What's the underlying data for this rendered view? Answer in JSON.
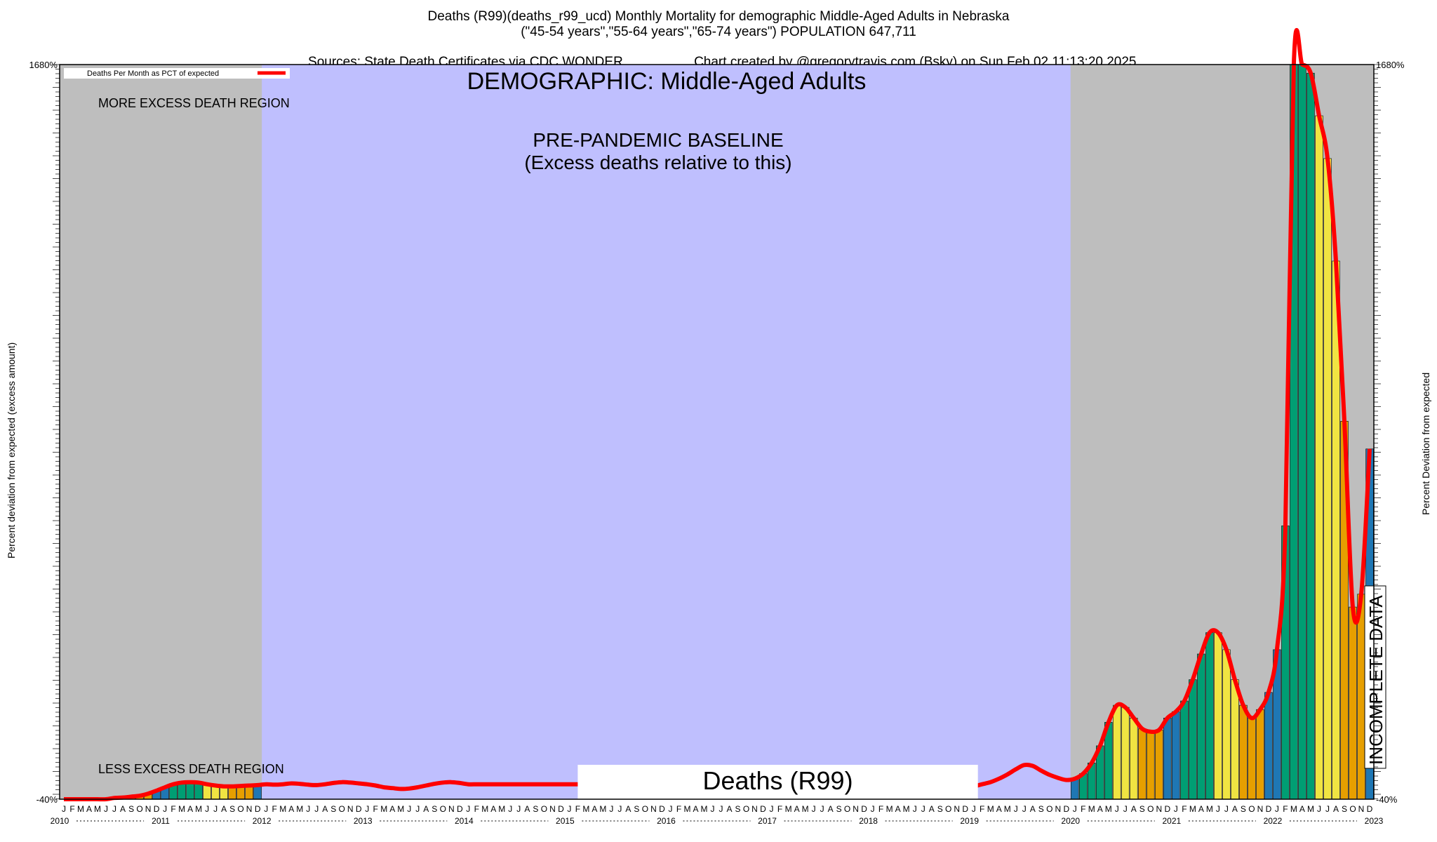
{
  "header": {
    "line1": "Deaths (R99)(deaths_r99_ucd) Monthly Mortality for demographic Middle-Aged Adults in Nebraska",
    "line2": "(\"45-54 years\",\"55-64 years\",\"65-74 years\") POPULATION 647,711",
    "line3_left": "Sources: State Death Certificates via CDC WONDER.",
    "line3_right": "Chart created by @gregorytravis.com (Bsky) on Sun Feb 02 11:13:20 2025"
  },
  "chart_data": {
    "type": "bar",
    "title": "DEMOGRAPHIC: Middle-Aged Adults",
    "bottom_label": "Deaths (R99)",
    "ylabel_left": "Percent deviation from expected (excess amount)",
    "ylabel_right": "Percent Deviation from expected",
    "legend": {
      "label": "Deaths Per Month as PCT of expected",
      "color": "#ff0000",
      "placement": "top-left"
    },
    "region_labels": {
      "more": "MORE EXCESS DEATH REGION",
      "less": "LESS EXCESS DEATH REGION",
      "baseline_line1": "PRE-PANDEMIC BASELINE",
      "baseline_line2": "(Excess deaths relative to this)",
      "incomplete": "INCOMPLETE DATA"
    },
    "baseline_period": {
      "start": "2012-01",
      "end": "2019-12"
    },
    "incomplete_from": "2022-12",
    "ylim": [
      -40,
      1680
    ],
    "y_tick_labels": [
      "-40%",
      "1680%"
    ],
    "x_start": "2010-01",
    "month_letters": [
      "J",
      "F",
      "M",
      "A",
      "M",
      "J",
      "J",
      "A",
      "S",
      "O",
      "N",
      "D"
    ],
    "years": [
      "2010",
      "2011",
      "2012",
      "2013",
      "2014",
      "2015",
      "2016",
      "2017",
      "2018",
      "2019",
      "2020",
      "2021",
      "2022",
      "2023"
    ],
    "values_pct": [
      -40,
      -40,
      -40,
      -40,
      -40,
      -40,
      -37,
      -36,
      -34,
      -32,
      -27,
      -20,
      -12,
      -5,
      -1,
      0,
      -1,
      -5,
      -8,
      -10,
      -10,
      -9,
      -8,
      -7,
      -5,
      -6,
      -5,
      -3,
      -4,
      -6,
      -7,
      -5,
      -2,
      0,
      -1,
      -3,
      -5,
      -8,
      -12,
      -14,
      -16,
      -15,
      -12,
      -8,
      -4,
      -1,
      0,
      -2,
      -5,
      -5,
      -5,
      -5,
      -5,
      -5,
      -5,
      -5,
      -5,
      -5,
      -5,
      -5,
      -5,
      -5,
      -5,
      -5,
      -5,
      -5,
      -5,
      -5,
      -5,
      -5,
      -5,
      -5,
      -5,
      -5,
      -5,
      -5,
      -5,
      -5,
      -5,
      -5,
      -5,
      -5,
      -5,
      -5,
      -5,
      -5,
      -5,
      -5,
      -5,
      -5,
      -5,
      -5,
      -5,
      -5,
      -5,
      -5,
      -8,
      -12,
      -14,
      -13,
      -12,
      -12,
      -11,
      -10,
      -9,
      -9,
      -10,
      -12,
      -10,
      -5,
      0,
      8,
      18,
      30,
      40,
      38,
      27,
      17,
      10,
      5,
      8,
      20,
      45,
      85,
      140,
      180,
      175,
      150,
      125,
      118,
      122,
      150,
      165,
      190,
      240,
      300,
      350,
      350,
      310,
      240,
      180,
      150,
      170,
      210,
      310,
      600,
      1690,
      1690,
      1660,
      1560,
      1460,
      1220,
      845,
      410,
      440,
      780
    ],
    "bar_colors": [
      "#1f77b4",
      "#009e73",
      "#009e73",
      "#009e73",
      "#009e73",
      "#f0e442",
      "#f0e442",
      "#f0e442",
      "#e69f00",
      "#e69f00",
      "#e69f00",
      "#1f77b4"
    ],
    "shade_color": "#bebebe",
    "baseline_color": "#bfbffe",
    "line_color": "#ff0000"
  }
}
